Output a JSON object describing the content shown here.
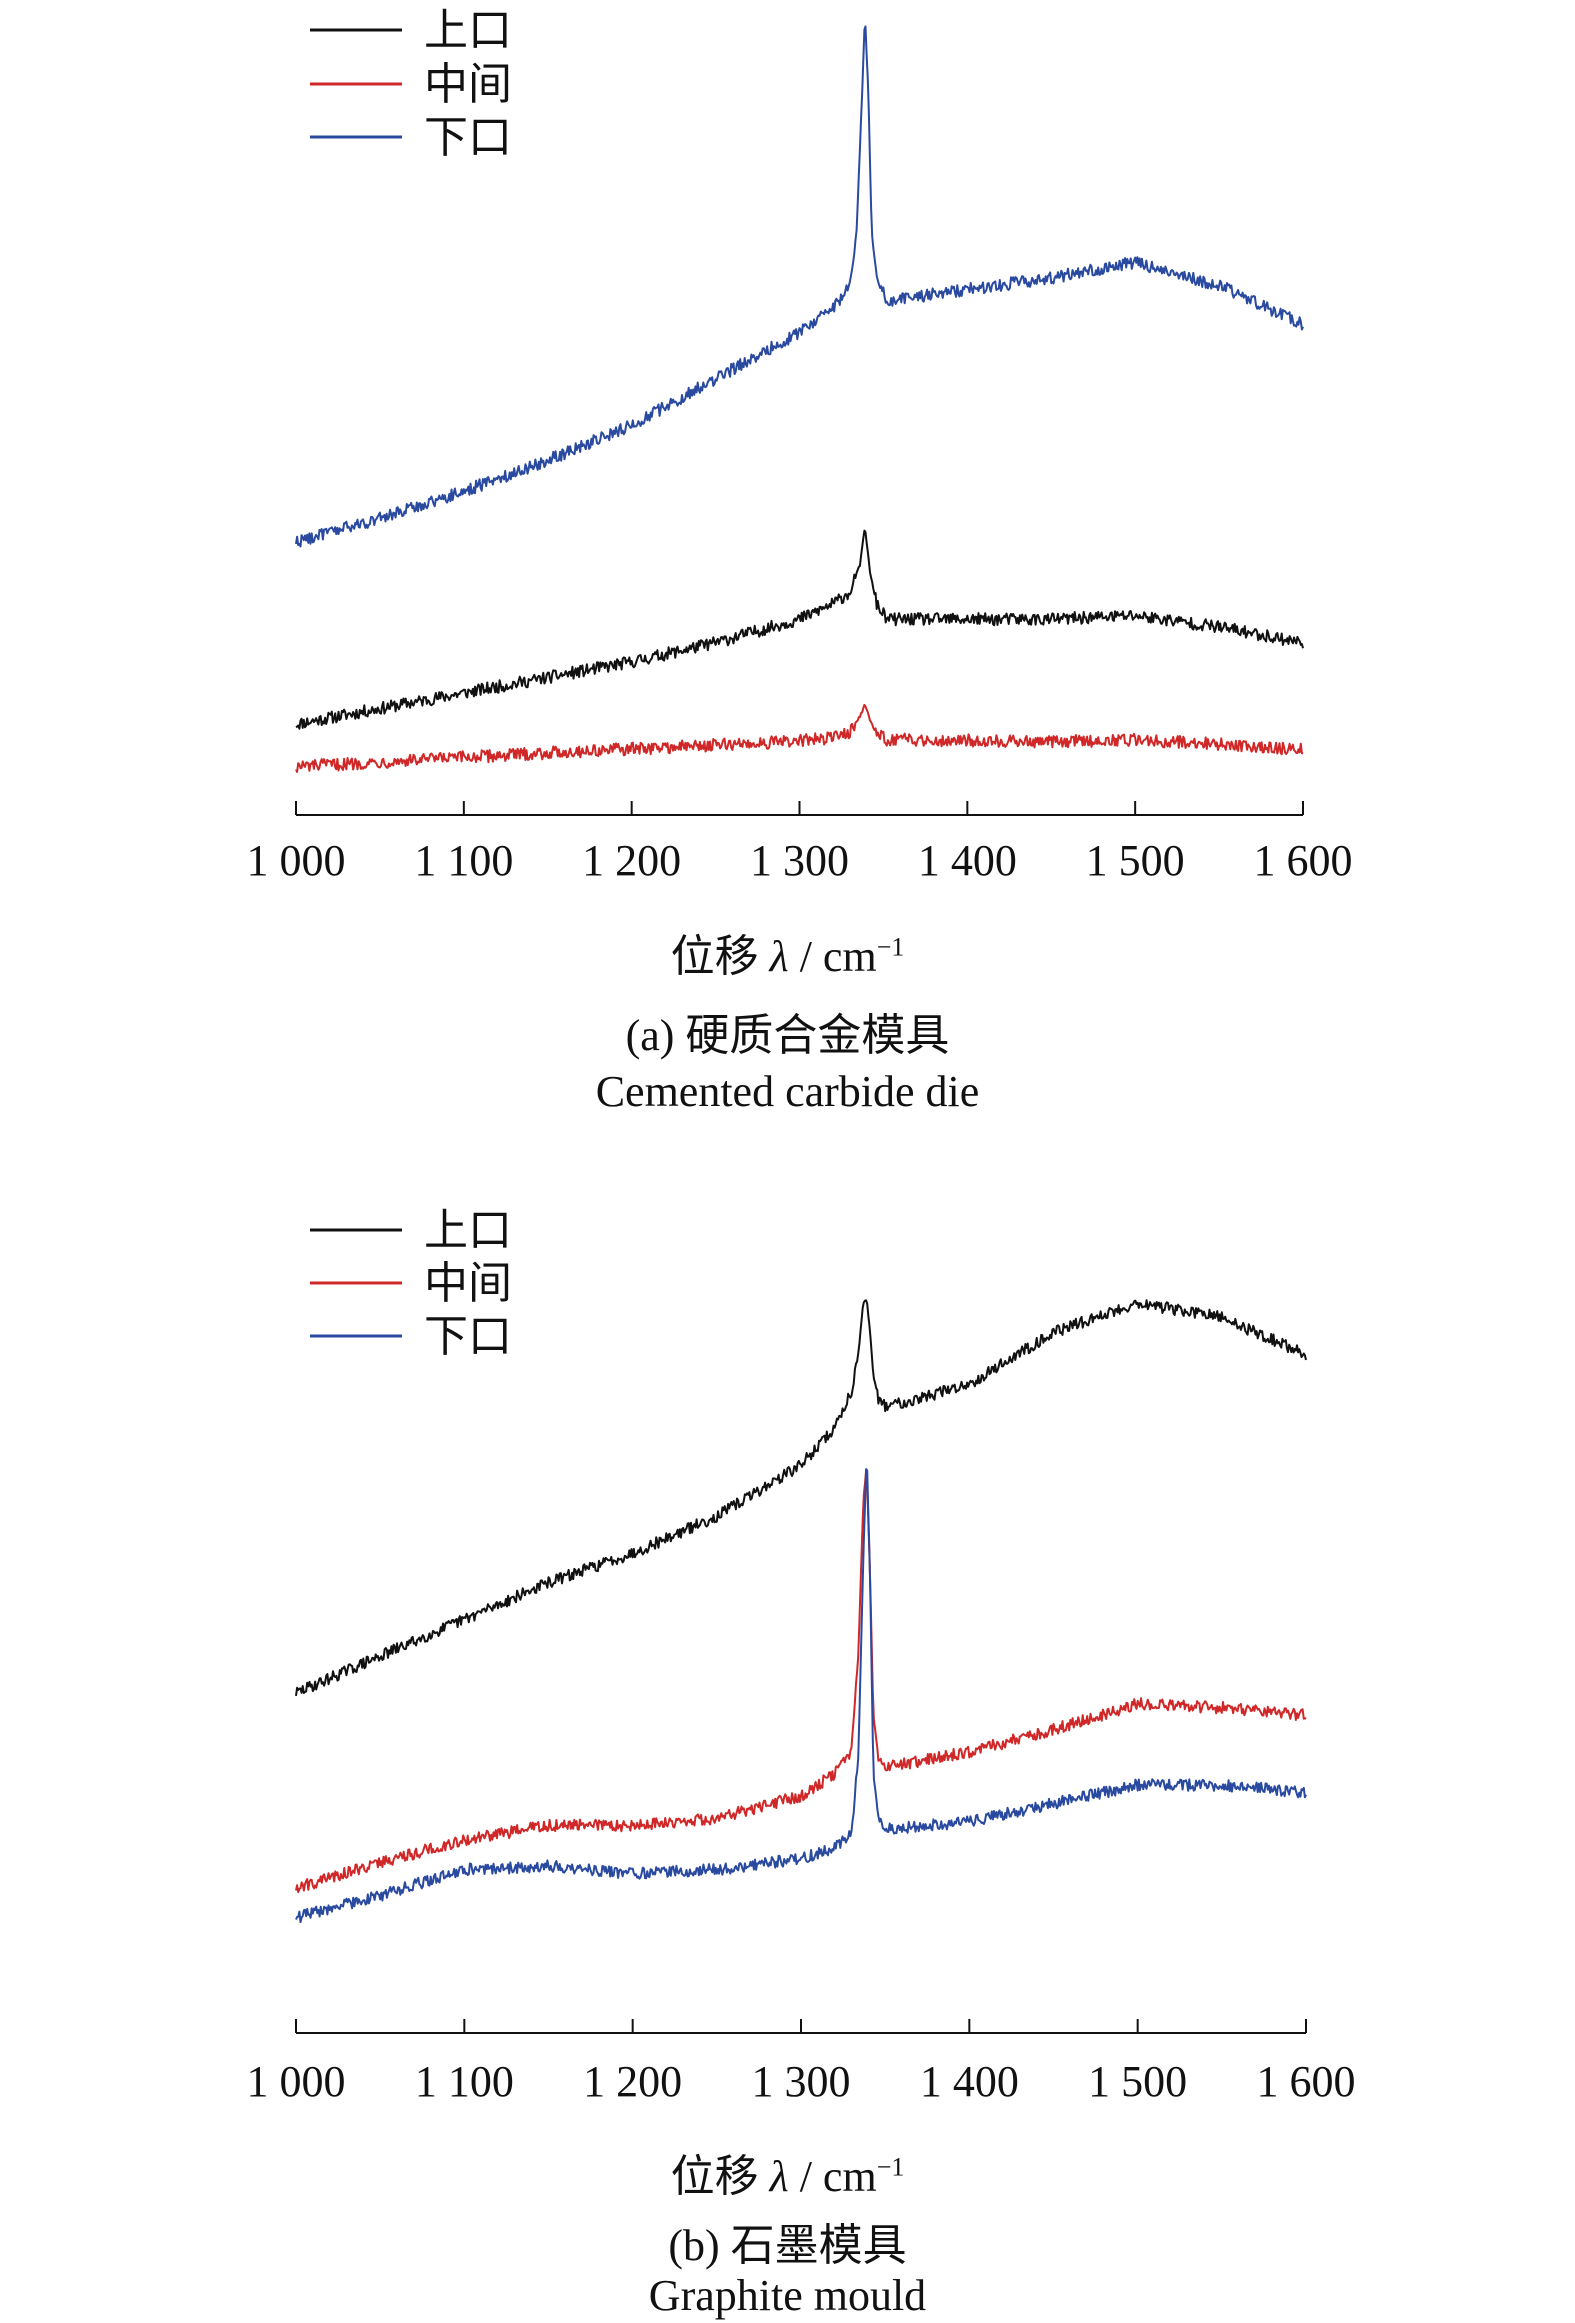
{
  "chart_data": [
    {
      "type": "line",
      "panel_label": "(a)",
      "title_zh": "硬质合金模具",
      "title_en": "Cemented carbide die",
      "xlabel": "位移",
      "xlabel_symbol": "λ",
      "xlabel_unit": "cm",
      "xlabel_unit_exp": "−1",
      "xlim": [
        1000,
        1600
      ],
      "xticks": [
        1000,
        1100,
        1200,
        1300,
        1400,
        1500,
        1600
      ],
      "xtick_labels": [
        "1 000",
        "1 100",
        "1 200",
        "1 300",
        "1 400",
        "1 500",
        "1 600"
      ],
      "ylim": [
        0,
        100
      ],
      "y_axis_shown": false,
      "grid": false,
      "legend_position": "top-left",
      "series": [
        {
          "name": "上口",
          "color": "#111111",
          "x": [
            1000,
            1050,
            1100,
            1150,
            1200,
            1250,
            1300,
            1320,
            1330,
            1336,
            1339,
            1342,
            1346,
            1352,
            1400,
            1450,
            1500,
            1550,
            1600
          ],
          "y": [
            8.5,
            10.5,
            12.5,
            14.5,
            16.5,
            19,
            22,
            24,
            25.5,
            29,
            34,
            28,
            24,
            22,
            22,
            22,
            22.5,
            21,
            19
          ]
        },
        {
          "name": "中间",
          "color": "#d02828",
          "x": [
            1000,
            1050,
            1100,
            1150,
            1200,
            1250,
            1300,
            1320,
            1330,
            1336,
            1339,
            1342,
            1346,
            1352,
            1400,
            1450,
            1500,
            1550,
            1600
          ],
          "y": [
            3,
            3.6,
            4.2,
            4.8,
            5.3,
            5.8,
            6.3,
            6.8,
            7.5,
            9.5,
            11,
            9,
            7.2,
            6.5,
            6.4,
            6.2,
            6.5,
            5.9,
            5.2
          ]
        },
        {
          "name": "下口",
          "color": "#2a4aa0",
          "x": [
            1000,
            1050,
            1100,
            1150,
            1200,
            1250,
            1300,
            1320,
            1330,
            1334,
            1337,
            1339,
            1341,
            1343,
            1346,
            1352,
            1400,
            1450,
            1500,
            1550,
            1600
          ],
          "y": [
            32,
            35,
            38.5,
            42.5,
            47,
            53,
            59,
            62,
            65,
            72,
            88,
            100,
            90,
            72,
            66,
            63,
            64.5,
            66,
            68,
            65,
            60
          ]
        }
      ]
    },
    {
      "type": "line",
      "panel_label": "(b)",
      "title_zh": "石墨模具",
      "title_en": "Graphite mould",
      "xlabel": "位移",
      "xlabel_symbol": "λ",
      "xlabel_unit": "cm",
      "xlabel_unit_exp": "−1",
      "xlim": [
        1000,
        1600
      ],
      "xticks": [
        1000,
        1100,
        1200,
        1300,
        1400,
        1500,
        1600
      ],
      "xtick_labels": [
        "1 000",
        "1 100",
        "1 200",
        "1 300",
        "1 400",
        "1 500",
        "1 600"
      ],
      "ylim": [
        0,
        100
      ],
      "y_axis_shown": false,
      "grid": false,
      "legend_position": "top-left",
      "series": [
        {
          "name": "上口",
          "color": "#111111",
          "x": [
            1000,
            1050,
            1100,
            1150,
            1200,
            1250,
            1300,
            1320,
            1330,
            1334,
            1337,
            1339,
            1341,
            1343,
            1346,
            1350,
            1370,
            1400,
            1450,
            1500,
            1550,
            1600
          ],
          "y": [
            39,
            44,
            49,
            54,
            58,
            63,
            70,
            75,
            80,
            85,
            92,
            92.5,
            88,
            82,
            79,
            78,
            79,
            81,
            88,
            92,
            90,
            85
          ]
        },
        {
          "name": "中间",
          "color": "#d02828",
          "x": [
            1000,
            1050,
            1100,
            1150,
            1200,
            1250,
            1300,
            1320,
            1330,
            1334,
            1337,
            1339,
            1341,
            1343,
            1346,
            1352,
            1400,
            1450,
            1500,
            1550,
            1600
          ],
          "y": [
            12.5,
            16,
            19,
            21,
            21,
            22,
            25,
            28,
            31,
            44,
            65,
            70,
            55,
            36,
            30,
            29,
            31,
            34,
            37.5,
            37,
            36
          ]
        },
        {
          "name": "下口",
          "color": "#2a4aa0",
          "x": [
            1000,
            1050,
            1100,
            1150,
            1200,
            1250,
            1300,
            1320,
            1330,
            1334,
            1337,
            1339,
            1341,
            1343,
            1346,
            1352,
            1400,
            1450,
            1500,
            1550,
            1600
          ],
          "y": [
            8.5,
            11.5,
            15,
            15.5,
            14.5,
            15,
            16.5,
            18,
            20,
            30,
            57,
            72,
            55,
            28,
            22,
            20.5,
            21.5,
            24,
            26.5,
            26.5,
            25.5
          ]
        }
      ]
    }
  ]
}
